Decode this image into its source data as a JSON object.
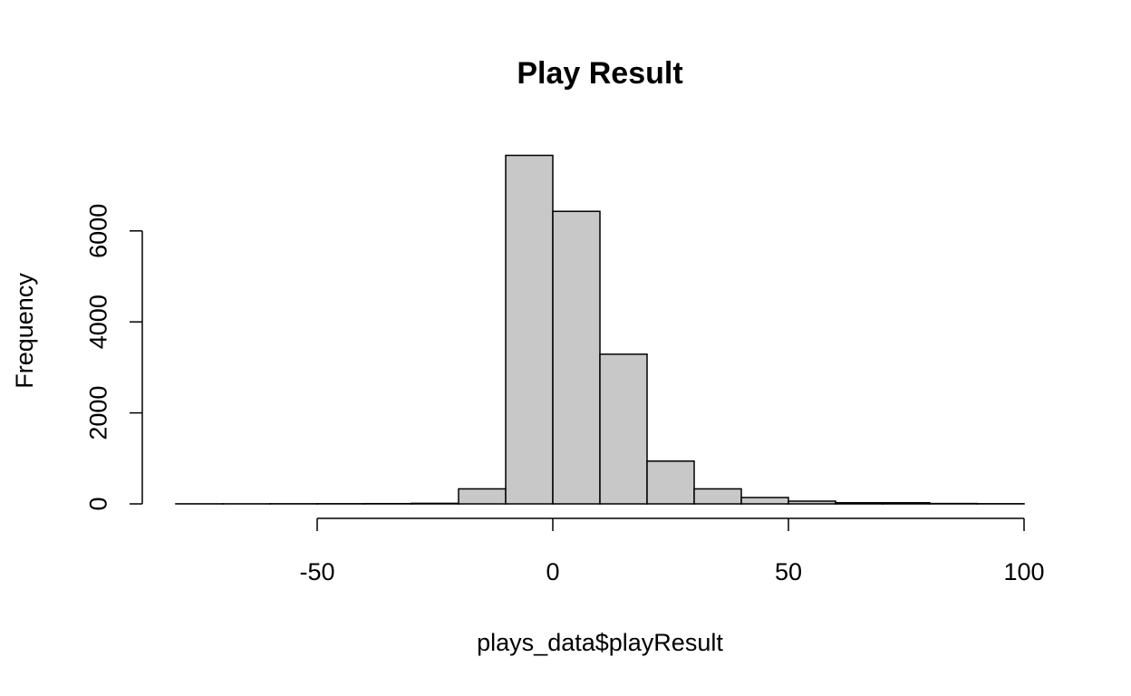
{
  "chart_data": {
    "type": "bar",
    "histogram": true,
    "title": "Play Result",
    "xlabel": "plays_data$playResult",
    "ylabel": "Frequency",
    "xlim": [
      -80,
      100
    ],
    "ylim": [
      0,
      7600
    ],
    "bin_width": 10,
    "bins": [
      {
        "x0": -80,
        "x1": -70,
        "count": 2
      },
      {
        "x0": -70,
        "x1": -60,
        "count": 2
      },
      {
        "x0": -60,
        "x1": -50,
        "count": 3
      },
      {
        "x0": -50,
        "x1": -40,
        "count": 4
      },
      {
        "x0": -40,
        "x1": -30,
        "count": 6
      },
      {
        "x0": -30,
        "x1": -20,
        "count": 12
      },
      {
        "x0": -20,
        "x1": -10,
        "count": 330
      },
      {
        "x0": -10,
        "x1": 0,
        "count": 7660
      },
      {
        "x0": 0,
        "x1": 10,
        "count": 6430
      },
      {
        "x0": 10,
        "x1": 20,
        "count": 3290
      },
      {
        "x0": 20,
        "x1": 30,
        "count": 940
      },
      {
        "x0": 30,
        "x1": 40,
        "count": 330
      },
      {
        "x0": 40,
        "x1": 50,
        "count": 140
      },
      {
        "x0": 50,
        "x1": 60,
        "count": 60
      },
      {
        "x0": 60,
        "x1": 70,
        "count": 25
      },
      {
        "x0": 70,
        "x1": 80,
        "count": 25
      },
      {
        "x0": 80,
        "x1": 90,
        "count": 8
      },
      {
        "x0": 90,
        "x1": 100,
        "count": 4
      }
    ],
    "x_ticks": [
      -50,
      0,
      50,
      100
    ],
    "x_tick_labels": [
      "-50",
      "0",
      "50",
      "100"
    ],
    "y_ticks": [
      0,
      2000,
      4000,
      6000
    ],
    "y_tick_labels": [
      "0",
      "2000",
      "4000",
      "6000"
    ],
    "bar_color": "#c8c8c8",
    "edge_color": "#000000",
    "grid": false,
    "legend": "none"
  }
}
